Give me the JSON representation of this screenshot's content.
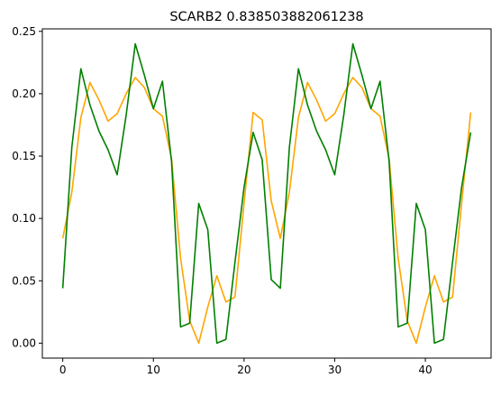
{
  "chart_data": {
    "type": "line",
    "title": "SCARB2 0.838503882061238",
    "xlabel": "",
    "ylabel": "",
    "xlim": [
      -2.25,
      47.25
    ],
    "ylim": [
      -0.012,
      0.252
    ],
    "xticks": [
      0,
      10,
      20,
      30,
      40
    ],
    "xtick_labels": [
      "0",
      "10",
      "20",
      "30",
      "40"
    ],
    "yticks": [
      0.0,
      0.05,
      0.1,
      0.15,
      0.2,
      0.25
    ],
    "ytick_labels": [
      "0.00",
      "0.05",
      "0.10",
      "0.15",
      "0.20",
      "0.25"
    ],
    "grid": false,
    "x": [
      0,
      1,
      2,
      3,
      4,
      5,
      6,
      7,
      8,
      9,
      10,
      11,
      12,
      13,
      14,
      15,
      16,
      17,
      18,
      19,
      20,
      21,
      22,
      23,
      24,
      25,
      26,
      27,
      28,
      29,
      30,
      31,
      32,
      33,
      34,
      35,
      36,
      37,
      38,
      39,
      40,
      41,
      42,
      43,
      44,
      45
    ],
    "series": [
      {
        "color": "#ffa500",
        "values": [
          0.084,
          0.121,
          0.181,
          0.209,
          0.195,
          0.178,
          0.184,
          0.2,
          0.213,
          0.205,
          0.188,
          0.182,
          0.148,
          0.068,
          0.018,
          0.0,
          0.029,
          0.054,
          0.033,
          0.037,
          0.112,
          0.185,
          0.179,
          0.114,
          0.084,
          0.121,
          0.181,
          0.209,
          0.195,
          0.178,
          0.184,
          0.2,
          0.213,
          0.205,
          0.188,
          0.182,
          0.148,
          0.068,
          0.018,
          0.0,
          0.029,
          0.054,
          0.033,
          0.037,
          0.112,
          0.185
        ]
      },
      {
        "color": "#008000",
        "values": [
          0.044,
          0.157,
          0.22,
          0.191,
          0.17,
          0.155,
          0.135,
          0.183,
          0.24,
          0.215,
          0.188,
          0.21,
          0.146,
          0.013,
          0.016,
          0.112,
          0.091,
          0.0,
          0.003,
          0.065,
          0.125,
          0.169,
          0.147,
          0.051,
          0.044,
          0.157,
          0.22,
          0.191,
          0.17,
          0.155,
          0.135,
          0.183,
          0.24,
          0.215,
          0.188,
          0.21,
          0.146,
          0.013,
          0.016,
          0.112,
          0.091,
          0.0,
          0.003,
          0.065,
          0.125,
          0.169
        ]
      }
    ]
  }
}
